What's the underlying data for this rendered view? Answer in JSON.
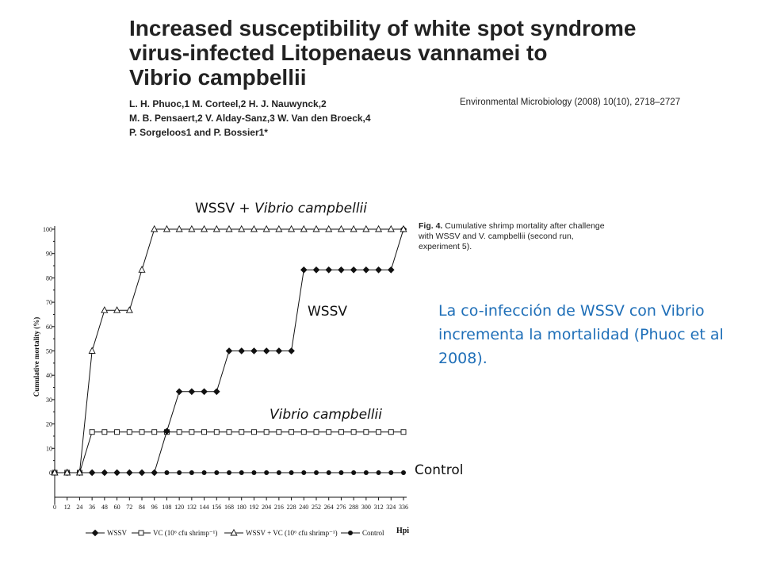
{
  "paper": {
    "title_lines": [
      "Increased susceptibility of white spot syndrome",
      "virus-infected Litopenaeus vannamei to",
      "Vibrio campbellii"
    ],
    "authors_lines": [
      "L. H. Phuoc,1 M. Corteel,2 H. J. Nauwynck,2",
      "M. B. Pensaert,2 V. Alday-Sanz,3 W. Van den Broeck,4",
      "P. Sorgeloos1 and P. Bossier1*"
    ],
    "journal": "Environmental Microbiology (2008) 10(10), 2718–2727"
  },
  "caption": {
    "fig": "Fig. 4.",
    "text": "Cumulative shrimp mortality after challenge with WSSV and V. campbellii (second run, experiment 5)."
  },
  "note": "La co-infección de WSSV con Vibrio incrementa la mortalidad (Phuoc et al 2008).",
  "annotations": {
    "wssv_vc": "WSSV + Vibrio campbellii",
    "wssv": "WSSV",
    "vc": "Vibrio campbellii",
    "control": "Control"
  },
  "chart_data": {
    "type": "line",
    "xlabel": "Hpi",
    "ylabel": "Cumulative mortality (%)",
    "xlim": [
      0,
      336
    ],
    "ylim": [
      0,
      100
    ],
    "x": [
      0,
      12,
      24,
      36,
      48,
      60,
      72,
      84,
      96,
      108,
      120,
      132,
      144,
      156,
      168,
      180,
      192,
      204,
      216,
      228,
      240,
      252,
      264,
      276,
      288,
      300,
      312,
      324,
      336
    ],
    "yticks": [
      0,
      10,
      20,
      30,
      40,
      50,
      60,
      70,
      80,
      90,
      100
    ],
    "series": [
      {
        "name": "WSSV",
        "marker": "diamond",
        "values": [
          0,
          0,
          0,
          0,
          0,
          0,
          0,
          0,
          0,
          17,
          33.3,
          33.3,
          33.3,
          33.3,
          50,
          50,
          50,
          50,
          50,
          50,
          83.3,
          83.3,
          83.3,
          83.3,
          83.3,
          83.3,
          83.3,
          83.3,
          100
        ]
      },
      {
        "name": "VC (10⁶ cfu shrimp⁻¹)",
        "marker": "square",
        "values": [
          0,
          0,
          0,
          16.7,
          16.7,
          16.7,
          16.7,
          16.7,
          16.7,
          16.7,
          16.7,
          16.7,
          16.7,
          16.7,
          16.7,
          16.7,
          16.7,
          16.7,
          16.7,
          16.7,
          16.7,
          16.7,
          16.7,
          16.7,
          16.7,
          16.7,
          16.7,
          16.7,
          16.7
        ]
      },
      {
        "name": "WSSV + VC (10⁶ cfu shrimp⁻¹)",
        "marker": "triangle",
        "values": [
          0,
          0,
          0,
          50,
          66.7,
          66.7,
          66.7,
          83.3,
          100,
          100,
          100,
          100,
          100,
          100,
          100,
          100,
          100,
          100,
          100,
          100,
          100,
          100,
          100,
          100,
          100,
          100,
          100,
          100,
          100
        ]
      },
      {
        "name": "Control",
        "marker": "circle",
        "values": [
          0,
          0,
          0,
          0,
          0,
          0,
          0,
          0,
          0,
          0,
          0,
          0,
          0,
          0,
          0,
          0,
          0,
          0,
          0,
          0,
          0,
          0,
          0,
          0,
          0,
          0,
          0,
          0,
          0
        ]
      }
    ],
    "legend_position": "bottom"
  }
}
